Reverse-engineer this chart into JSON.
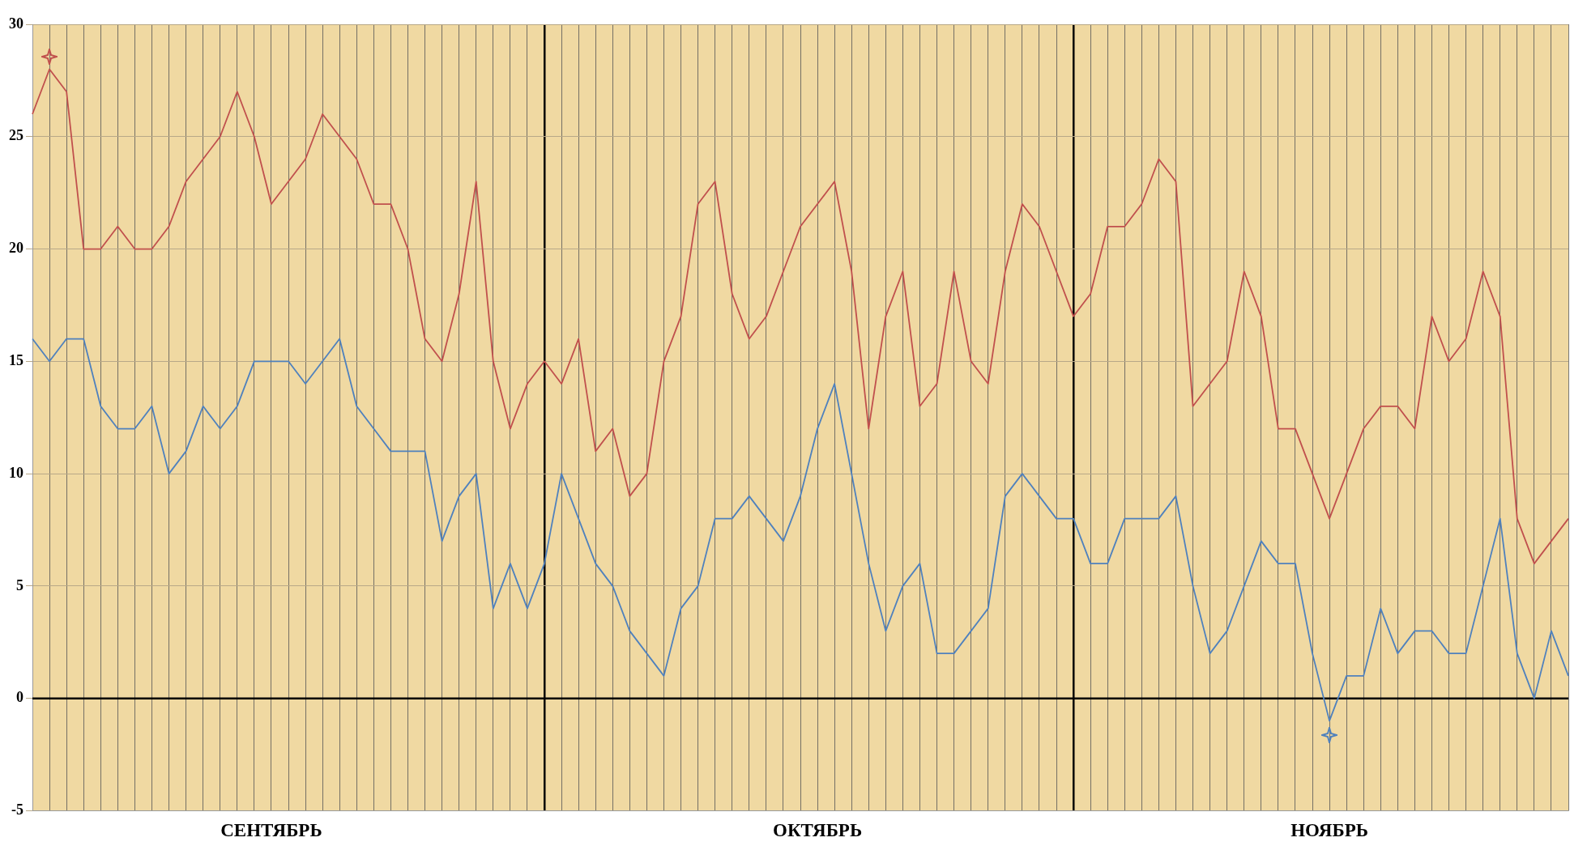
{
  "chart_data": {
    "type": "line",
    "categories": [
      null,
      null,
      null,
      null,
      null,
      null,
      null,
      null,
      null,
      null,
      null,
      null,
      null,
      null,
      "СЕНТЯБРЬ",
      null,
      null,
      null,
      null,
      null,
      null,
      null,
      null,
      null,
      null,
      null,
      null,
      null,
      null,
      null,
      null,
      null,
      null,
      null,
      null,
      null,
      null,
      null,
      null,
      null,
      null,
      null,
      null,
      null,
      null,
      null,
      "ОКТЯБРЬ",
      null,
      null,
      null,
      null,
      null,
      null,
      null,
      null,
      null,
      null,
      null,
      null,
      null,
      null,
      null,
      null,
      null,
      null,
      null,
      null,
      null,
      null,
      null,
      null,
      null,
      null,
      null,
      null,
      null,
      "НОЯБРЬ",
      null,
      null,
      null,
      null,
      null,
      null,
      null,
      null,
      null,
      null,
      null,
      null,
      null,
      null
    ],
    "series": [
      {
        "color": "#c0504d",
        "values": [
          26,
          28,
          27,
          20,
          20,
          21,
          20,
          20,
          21,
          23,
          24,
          25,
          27,
          25,
          22,
          23,
          24,
          26,
          25,
          24,
          22,
          22,
          20,
          16,
          15,
          18,
          23,
          15,
          12,
          14,
          15,
          14,
          16,
          11,
          12,
          9,
          10,
          15,
          17,
          22,
          23,
          18,
          16,
          17,
          19,
          21,
          22,
          23,
          19,
          12,
          17,
          19,
          13,
          14,
          19,
          15,
          14,
          19,
          22,
          21,
          19,
          17,
          18,
          21,
          21,
          22,
          24,
          23,
          13,
          14,
          15,
          19,
          17,
          12,
          12,
          10,
          8,
          10,
          12,
          13,
          13,
          12,
          17,
          15,
          16,
          19,
          17,
          8,
          6,
          7,
          8
        ]
      },
      {
        "color": "#4f81bd",
        "values": [
          16,
          15,
          16,
          16,
          13,
          12,
          12,
          13,
          10,
          11,
          13,
          12,
          13,
          15,
          15,
          15,
          14,
          15,
          16,
          13,
          12,
          11,
          11,
          11,
          7,
          9,
          10,
          4,
          6,
          4,
          6,
          10,
          8,
          6,
          5,
          3,
          2,
          1,
          4,
          5,
          8,
          8,
          9,
          8,
          7,
          9,
          12,
          14,
          10,
          6,
          3,
          5,
          6,
          2,
          2,
          3,
          4,
          9,
          10,
          9,
          8,
          8,
          6,
          6,
          8,
          8,
          8,
          9,
          5,
          2,
          3,
          5,
          7,
          6,
          6,
          2,
          -1,
          1,
          1,
          4,
          2,
          3,
          3,
          2,
          2,
          5,
          8,
          2,
          0,
          3,
          1
        ]
      }
    ],
    "ylim": [
      -5,
      30
    ],
    "yticks": [
      -5,
      0,
      5,
      10,
      15,
      20,
      25,
      30
    ],
    "grid": true
  }
}
